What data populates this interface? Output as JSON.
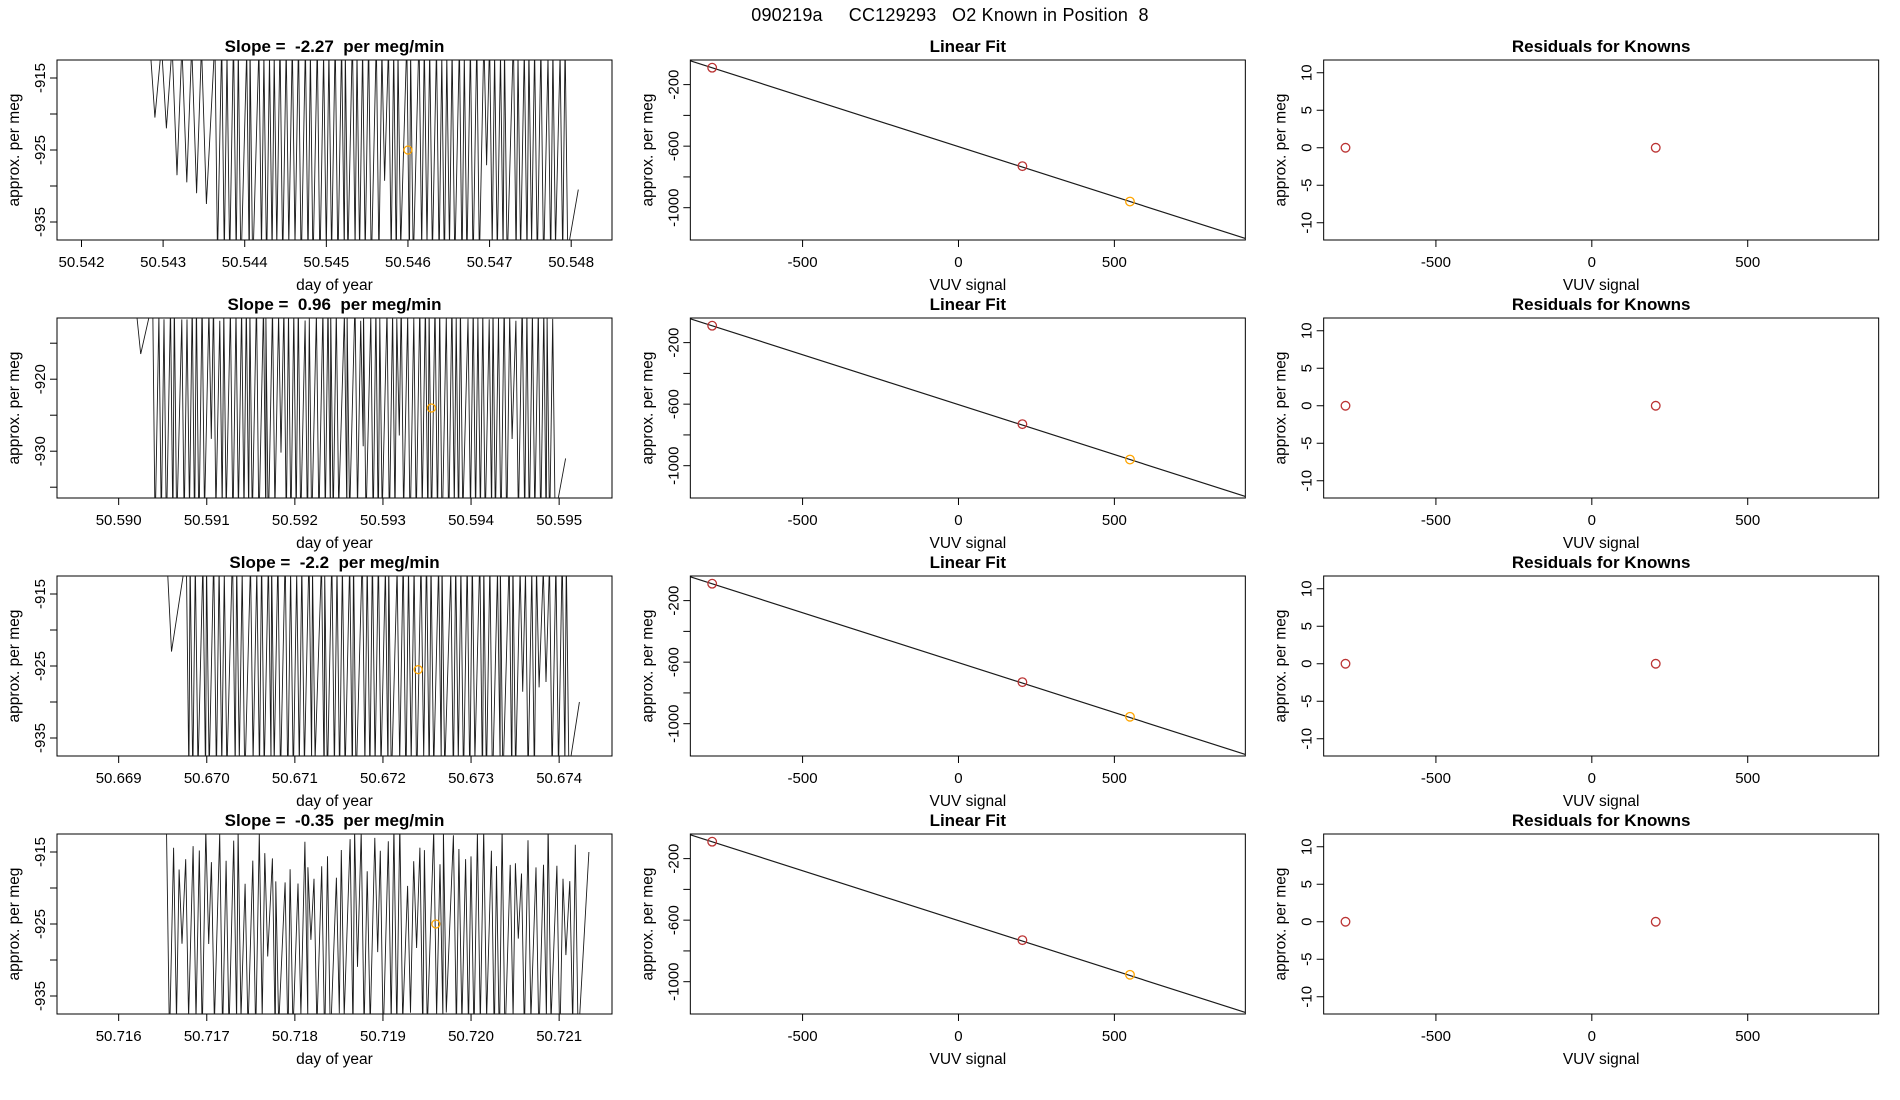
{
  "header": {
    "title": "090219a     CC129293   O2 Known in Position  8"
  },
  "palette": {
    "background": "#ffffff",
    "axis": "#000000",
    "line": "#1a1a1a",
    "known_point": "#bb3333",
    "unknown_point": "#ffa500"
  },
  "chart_data": [
    {
      "row": 1,
      "col": 1,
      "type": "line",
      "title": "Slope =  -2.27  per meg/min",
      "slope_per_meg_min": -2.27,
      "xlabel": "day of year",
      "ylabel": "approx. per meg",
      "xlim": [
        50.5417,
        50.5485
      ],
      "ylim": [
        -937.5,
        -912.5
      ],
      "xticks": [
        {
          "v": 50.542,
          "t": "50.542"
        },
        {
          "v": 50.543,
          "t": "50.543"
        },
        {
          "v": 50.544,
          "t": "50.544"
        },
        {
          "v": 50.545,
          "t": "50.545"
        },
        {
          "v": 50.546,
          "t": "50.546"
        },
        {
          "v": 50.547,
          "t": "50.547"
        },
        {
          "v": 50.548,
          "t": "50.548"
        }
      ],
      "yticks": [
        {
          "v": -935,
          "t": "-935"
        },
        {
          "v": -930,
          "t": ""
        },
        {
          "v": -925,
          "t": "-925"
        },
        {
          "v": -920,
          "t": ""
        },
        {
          "v": -915,
          "t": "-915"
        }
      ],
      "signal": {
        "seed": 101,
        "intro_halfwidth": 6e-05,
        "intro": [
          [
            50.5429,
            -920.5
          ],
          [
            50.54304,
            -922.0
          ],
          [
            50.54317,
            -928.5
          ],
          [
            50.54329,
            -929.5
          ],
          [
            50.54341,
            -931.0
          ],
          [
            50.54353,
            -932.5
          ]
        ],
        "main": {
          "from": 50.54365,
          "to": 50.548,
          "count": 60,
          "top": -910.5,
          "top_jitter": 1.5,
          "bottom": -940,
          "bottom_jitter": 2,
          "shallow_prob": 0.1,
          "shallow": -929,
          "tail_y": -930.5
        }
      },
      "marker": {
        "x": 50.546,
        "y": -925.0
      }
    },
    {
      "row": 1,
      "col": 2,
      "type": "scatter-line",
      "title": "Linear Fit",
      "xlabel": "VUV signal",
      "ylabel": "approx. per meg",
      "xlim": [
        -860,
        920
      ],
      "ylim": [
        -1210,
        -40
      ],
      "xticks": [
        {
          "v": -500,
          "t": "-500"
        },
        {
          "v": 0,
          "t": "0"
        },
        {
          "v": 500,
          "t": "500"
        }
      ],
      "yticks": [
        {
          "v": -1000,
          "t": "-1000"
        },
        {
          "v": -800,
          "t": ""
        },
        {
          "v": -600,
          "t": "-600"
        },
        {
          "v": -400,
          "t": ""
        },
        {
          "v": -200,
          "t": "-200"
        }
      ],
      "fit_line": {
        "x1": -860,
        "y1": -45,
        "x2": 920,
        "y2": -1200
      },
      "points": [
        {
          "x": -790,
          "y": -90,
          "c": "known"
        },
        {
          "x": 205,
          "y": -730,
          "c": "known"
        },
        {
          "x": 550,
          "y": -960,
          "c": "unknown"
        }
      ]
    },
    {
      "row": 1,
      "col": 3,
      "type": "scatter",
      "title": "Residuals for Knowns",
      "xlabel": "VUV signal",
      "ylabel": "approx. per meg",
      "xlim": [
        -860,
        920
      ],
      "ylim": [
        -12.3,
        11.7
      ],
      "xticks": [
        {
          "v": -500,
          "t": "-500"
        },
        {
          "v": 0,
          "t": "0"
        },
        {
          "v": 500,
          "t": "500"
        }
      ],
      "yticks": [
        {
          "v": -10,
          "t": "-10"
        },
        {
          "v": -5,
          "t": "-5"
        },
        {
          "v": 0,
          "t": "0"
        },
        {
          "v": 5,
          "t": "5"
        },
        {
          "v": 10,
          "t": "10"
        }
      ],
      "points": [
        {
          "x": -790,
          "y": 0,
          "c": "known"
        },
        {
          "x": 205,
          "y": 0,
          "c": "known"
        }
      ]
    },
    {
      "row": 2,
      "col": 1,
      "type": "line",
      "title": "Slope =  0.96  per meg/min",
      "slope_per_meg_min": 0.96,
      "xlabel": "day of year",
      "ylabel": "approx. per meg",
      "xlim": [
        50.5893,
        50.5956
      ],
      "ylim": [
        -936.5,
        -911.5
      ],
      "xticks": [
        {
          "v": 50.59,
          "t": "50.590"
        },
        {
          "v": 50.591,
          "t": "50.591"
        },
        {
          "v": 50.592,
          "t": "50.592"
        },
        {
          "v": 50.593,
          "t": "50.593"
        },
        {
          "v": 50.594,
          "t": "50.594"
        },
        {
          "v": 50.595,
          "t": "50.595"
        }
      ],
      "yticks": [
        {
          "v": -935,
          "t": ""
        },
        {
          "v": -930,
          "t": "-930"
        },
        {
          "v": -925,
          "t": ""
        },
        {
          "v": -920,
          "t": "-920"
        },
        {
          "v": -915,
          "t": ""
        }
      ],
      "signal": {
        "seed": 202,
        "intro_halfwidth": 5e-05,
        "intro": [
          [
            50.59025,
            -916.5
          ]
        ],
        "main": {
          "from": 50.5904,
          "to": 50.595,
          "count": 75,
          "top": -910.5,
          "top_jitter": 1.5,
          "bottom": -940,
          "bottom_jitter": 2,
          "shallow_prob": 0.08,
          "shallow": -929,
          "tail_y": -931
        }
      },
      "marker": {
        "x": 50.59355,
        "y": -924.0
      }
    },
    {
      "row": 2,
      "col": 2,
      "type": "scatter-line",
      "title": "Linear Fit",
      "xlabel": "VUV signal",
      "ylabel": "approx. per meg",
      "xlim": [
        -860,
        920
      ],
      "ylim": [
        -1210,
        -40
      ],
      "xticks": [
        {
          "v": -500,
          "t": "-500"
        },
        {
          "v": 0,
          "t": "0"
        },
        {
          "v": 500,
          "t": "500"
        }
      ],
      "yticks": [
        {
          "v": -1000,
          "t": "-1000"
        },
        {
          "v": -800,
          "t": ""
        },
        {
          "v": -600,
          "t": "-600"
        },
        {
          "v": -400,
          "t": ""
        },
        {
          "v": -200,
          "t": "-200"
        }
      ],
      "fit_line": {
        "x1": -860,
        "y1": -45,
        "x2": 920,
        "y2": -1200
      },
      "points": [
        {
          "x": -790,
          "y": -90,
          "c": "known"
        },
        {
          "x": 205,
          "y": -730,
          "c": "known"
        },
        {
          "x": 550,
          "y": -960,
          "c": "unknown"
        }
      ]
    },
    {
      "row": 2,
      "col": 3,
      "type": "scatter",
      "title": "Residuals for Knowns",
      "xlabel": "VUV signal",
      "ylabel": "approx. per meg",
      "xlim": [
        -860,
        920
      ],
      "ylim": [
        -12.3,
        11.7
      ],
      "xticks": [
        {
          "v": -500,
          "t": "-500"
        },
        {
          "v": 0,
          "t": "0"
        },
        {
          "v": 500,
          "t": "500"
        }
      ],
      "yticks": [
        {
          "v": -10,
          "t": "-10"
        },
        {
          "v": -5,
          "t": "-5"
        },
        {
          "v": 0,
          "t": "0"
        },
        {
          "v": 5,
          "t": "5"
        },
        {
          "v": 10,
          "t": "10"
        }
      ],
      "points": [
        {
          "x": -790,
          "y": 0,
          "c": "known"
        },
        {
          "x": 205,
          "y": 0,
          "c": "known"
        }
      ]
    },
    {
      "row": 3,
      "col": 1,
      "type": "line",
      "title": "Slope =  -2.2  per meg/min",
      "slope_per_meg_min": -2.2,
      "xlabel": "day of year",
      "ylabel": "approx. per meg",
      "xlim": [
        50.6683,
        50.6746
      ],
      "ylim": [
        -937.5,
        -912.5
      ],
      "xticks": [
        {
          "v": 50.669,
          "t": "50.669"
        },
        {
          "v": 50.67,
          "t": "50.670"
        },
        {
          "v": 50.671,
          "t": "50.671"
        },
        {
          "v": 50.672,
          "t": "50.672"
        },
        {
          "v": 50.673,
          "t": "50.673"
        },
        {
          "v": 50.674,
          "t": "50.674"
        }
      ],
      "yticks": [
        {
          "v": -935,
          "t": "-935"
        },
        {
          "v": -930,
          "t": ""
        },
        {
          "v": -925,
          "t": "-925"
        },
        {
          "v": -920,
          "t": ""
        },
        {
          "v": -915,
          "t": "-915"
        }
      ],
      "signal": {
        "seed": 303,
        "intro_halfwidth": 5e-05,
        "intro": [
          [
            50.6696,
            -923.0
          ]
        ],
        "main": {
          "from": 50.66975,
          "to": 50.67415,
          "count": 66,
          "top": -910.5,
          "top_jitter": 1.5,
          "bottom": -940,
          "bottom_jitter": 2,
          "shallow_prob": 0.1,
          "shallow": -928,
          "tail_y": -930
        }
      },
      "marker": {
        "x": 50.6724,
        "y": -925.5
      }
    },
    {
      "row": 3,
      "col": 2,
      "type": "scatter-line",
      "title": "Linear Fit",
      "xlabel": "VUV signal",
      "ylabel": "approx. per meg",
      "xlim": [
        -860,
        920
      ],
      "ylim": [
        -1210,
        -40
      ],
      "xticks": [
        {
          "v": -500,
          "t": "-500"
        },
        {
          "v": 0,
          "t": "0"
        },
        {
          "v": 500,
          "t": "500"
        }
      ],
      "yticks": [
        {
          "v": -1000,
          "t": "-1000"
        },
        {
          "v": -800,
          "t": ""
        },
        {
          "v": -600,
          "t": "-600"
        },
        {
          "v": -400,
          "t": ""
        },
        {
          "v": -200,
          "t": "-200"
        }
      ],
      "fit_line": {
        "x1": -860,
        "y1": -45,
        "x2": 920,
        "y2": -1200
      },
      "points": [
        {
          "x": -790,
          "y": -90,
          "c": "known"
        },
        {
          "x": 205,
          "y": -730,
          "c": "known"
        },
        {
          "x": 550,
          "y": -955,
          "c": "unknown"
        }
      ]
    },
    {
      "row": 3,
      "col": 3,
      "type": "scatter",
      "title": "Residuals for Knowns",
      "xlabel": "VUV signal",
      "ylabel": "approx. per meg",
      "xlim": [
        -860,
        920
      ],
      "ylim": [
        -12.3,
        11.7
      ],
      "xticks": [
        {
          "v": -500,
          "t": "-500"
        },
        {
          "v": 0,
          "t": "0"
        },
        {
          "v": 500,
          "t": "500"
        }
      ],
      "yticks": [
        {
          "v": -10,
          "t": "-10"
        },
        {
          "v": -5,
          "t": "-5"
        },
        {
          "v": 0,
          "t": "0"
        },
        {
          "v": 5,
          "t": "5"
        },
        {
          "v": 10,
          "t": "10"
        }
      ],
      "points": [
        {
          "x": -790,
          "y": 0,
          "c": "known"
        },
        {
          "x": 205,
          "y": 0,
          "c": "known"
        }
      ]
    },
    {
      "row": 4,
      "col": 1,
      "type": "line",
      "title": "Slope =  -0.35  per meg/min",
      "slope_per_meg_min": -0.35,
      "xlabel": "day of year",
      "ylabel": "approx. per meg",
      "xlim": [
        50.7153,
        50.7216
      ],
      "ylim": [
        -937.5,
        -912.5
      ],
      "xticks": [
        {
          "v": 50.716,
          "t": "50.716"
        },
        {
          "v": 50.717,
          "t": "50.717"
        },
        {
          "v": 50.718,
          "t": "50.718"
        },
        {
          "v": 50.719,
          "t": "50.719"
        },
        {
          "v": 50.72,
          "t": "50.720"
        },
        {
          "v": 50.721,
          "t": "50.721"
        }
      ],
      "yticks": [
        {
          "v": -935,
          "t": "-935"
        },
        {
          "v": -930,
          "t": ""
        },
        {
          "v": -925,
          "t": "-925"
        },
        {
          "v": -920,
          "t": ""
        },
        {
          "v": -915,
          "t": "-915"
        }
      ],
      "signal": {
        "seed": 404,
        "intro_halfwidth": 5e-05,
        "intro": [],
        "main": {
          "from": 50.71655,
          "to": 50.72125,
          "count": 64,
          "top": -915.5,
          "top_jitter": 4.5,
          "bottom": -939.5,
          "bottom_jitter": 2.5,
          "shallow_prob": 0.12,
          "shallow": -929,
          "tail_y": -915
        }
      },
      "marker": {
        "x": 50.7196,
        "y": -925.0
      }
    },
    {
      "row": 4,
      "col": 2,
      "type": "scatter-line",
      "title": "Linear Fit",
      "xlabel": "VUV signal",
      "ylabel": "approx. per meg",
      "xlim": [
        -860,
        920
      ],
      "ylim": [
        -1210,
        -40
      ],
      "xticks": [
        {
          "v": -500,
          "t": "-500"
        },
        {
          "v": 0,
          "t": "0"
        },
        {
          "v": 500,
          "t": "500"
        }
      ],
      "yticks": [
        {
          "v": -1000,
          "t": "-1000"
        },
        {
          "v": -800,
          "t": ""
        },
        {
          "v": -600,
          "t": "-600"
        },
        {
          "v": -400,
          "t": ""
        },
        {
          "v": -200,
          "t": "-200"
        }
      ],
      "fit_line": {
        "x1": -860,
        "y1": -45,
        "x2": 920,
        "y2": -1200
      },
      "points": [
        {
          "x": -790,
          "y": -90,
          "c": "known"
        },
        {
          "x": 205,
          "y": -730,
          "c": "known"
        },
        {
          "x": 550,
          "y": -955,
          "c": "unknown"
        }
      ]
    },
    {
      "row": 4,
      "col": 3,
      "type": "scatter",
      "title": "Residuals for Knowns",
      "xlabel": "VUV signal",
      "ylabel": "approx. per meg",
      "xlim": [
        -860,
        920
      ],
      "ylim": [
        -12.3,
        11.7
      ],
      "xticks": [
        {
          "v": -500,
          "t": "-500"
        },
        {
          "v": 0,
          "t": "0"
        },
        {
          "v": 500,
          "t": "500"
        }
      ],
      "yticks": [
        {
          "v": -10,
          "t": "-10"
        },
        {
          "v": -5,
          "t": "-5"
        },
        {
          "v": 0,
          "t": "0"
        },
        {
          "v": 5,
          "t": "5"
        },
        {
          "v": 10,
          "t": "10"
        }
      ],
      "points": [
        {
          "x": -790,
          "y": 0,
          "c": "known"
        },
        {
          "x": 205,
          "y": 0,
          "c": "known"
        }
      ]
    }
  ]
}
